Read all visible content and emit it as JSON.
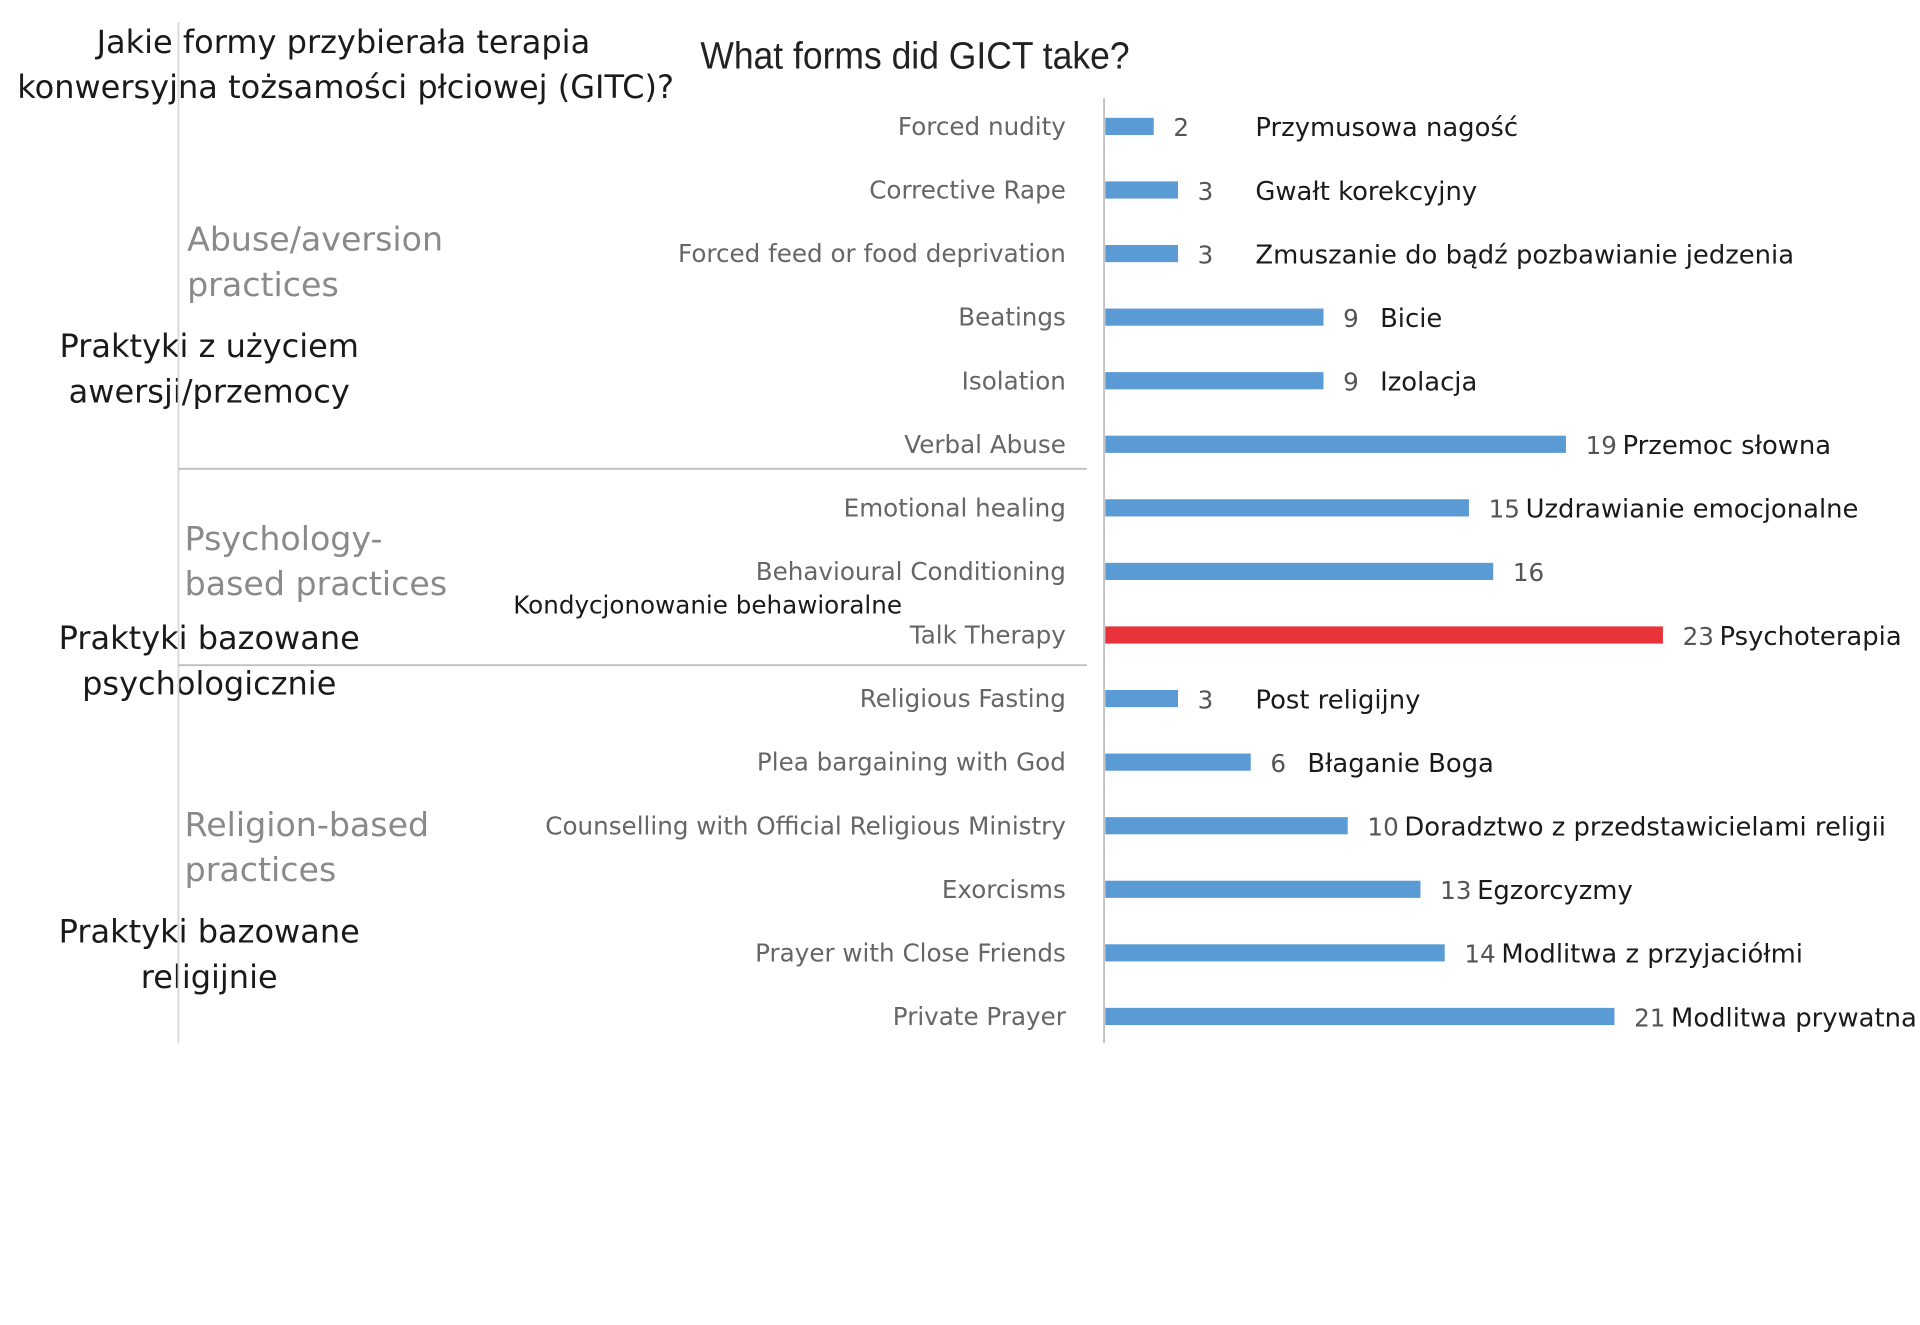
{
  "question": {
    "line1": "Jakie formy przybierała terapia",
    "line2": "konwersyjna tożsamości płciowej (GITC)?"
  },
  "groups": [
    {
      "en_line1": "Abuse/aversion",
      "en_line2": "practices",
      "pl_line1": "Praktyki z użyciem",
      "pl_line2": "awersji/przemocy"
    },
    {
      "en_line1": "Psychology-",
      "en_line2": "based practices",
      "pl_line1": "Praktyki bazowane",
      "pl_line2": "psychologicznie"
    },
    {
      "en_line1": "Religion-based",
      "en_line2": "practices",
      "pl_line1": "Praktyki bazowane",
      "pl_line2": "religijnie"
    }
  ],
  "extra_label": "Kondycjonowanie behawioralne",
  "colors": {
    "bar": "#5b9bd5",
    "highlight": "#e8333a",
    "axis": "#bfbfbf"
  },
  "chart_data": {
    "type": "bar",
    "orientation": "horizontal",
    "title": "What forms did GICT take?",
    "categories": [
      "Forced nudity",
      "Corrective Rape",
      "Forced feed or food deprivation",
      "Beatings",
      "Isolation",
      "Verbal Abuse",
      "Emotional healing",
      "Behavioural Conditioning",
      "Talk Therapy",
      "Religious Fasting",
      "Plea bargaining with God",
      "Counselling with Official Religious Ministry",
      "Exorcisms",
      "Prayer with Close Friends",
      "Private Prayer"
    ],
    "values": [
      2,
      3,
      3,
      9,
      9,
      19,
      15,
      16,
      23,
      3,
      6,
      10,
      13,
      14,
      21
    ],
    "translations": [
      "Przymusowa nagość",
      "Gwałt korekcyjny",
      "Zmuszanie do bądź pozbawianie jedzenia",
      "Bicie",
      "Izolacja",
      "Przemoc słowna",
      "Uzdrawianie emocjonalne",
      "",
      "Psychoterapia",
      "Post religijny",
      "Błaganie Boga",
      "Doradztwo z przedstawicielami religii",
      "Egzorcyzmy",
      "Modlitwa z przyjaciółmi",
      "Modlitwa prywatna"
    ],
    "highlighted": "Talk Therapy",
    "xlim": [
      0,
      23
    ],
    "grid": false,
    "legend": "none"
  }
}
